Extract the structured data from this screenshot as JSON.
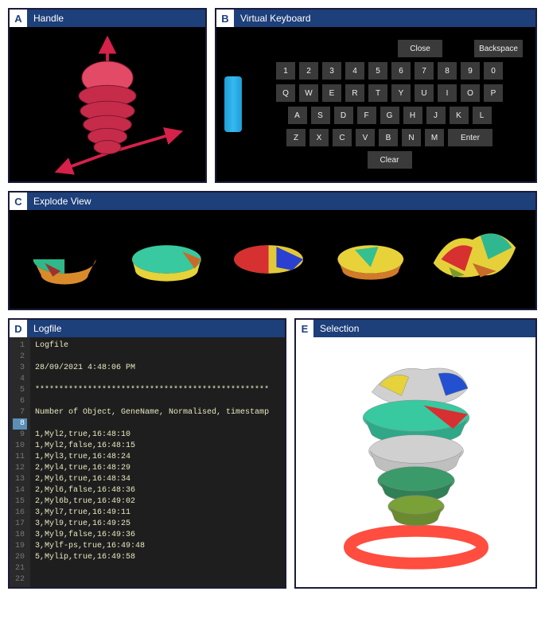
{
  "panels": {
    "a": {
      "tag": "A",
      "title": "Handle"
    },
    "b": {
      "tag": "B",
      "title": "Virtual Keyboard"
    },
    "c": {
      "tag": "C",
      "title": "Explode View"
    },
    "d": {
      "tag": "D",
      "title": "Logfile"
    },
    "e": {
      "tag": "E",
      "title": "Selection"
    }
  },
  "keyboard": {
    "close": "Close",
    "backspace": "Backspace",
    "enter": "Enter",
    "clear": "Clear",
    "rows": [
      [
        "1",
        "2",
        "3",
        "4",
        "5",
        "6",
        "7",
        "8",
        "9",
        "0"
      ],
      [
        "Q",
        "W",
        "E",
        "R",
        "T",
        "Y",
        "U",
        "I",
        "O",
        "P"
      ],
      [
        "A",
        "S",
        "D",
        "F",
        "G",
        "H",
        "J",
        "K",
        "L"
      ],
      [
        "Z",
        "X",
        "C",
        "V",
        "B",
        "N",
        "M"
      ]
    ],
    "key_bg": "#3a3a3a",
    "key_fg": "#eeeeee",
    "panel_bg": "#000000"
  },
  "handle_viz": {
    "bg": "#000000",
    "object_color": "#c72b4a",
    "object_highlight": "#ff4d6d",
    "arrow_color": "#d6214a"
  },
  "explode_view": {
    "bg": "#000000",
    "segments": [
      {
        "colors": [
          "#d98b2b",
          "#2fb88a",
          "#a03030"
        ]
      },
      {
        "colors": [
          "#38c9a0",
          "#e6d23a",
          "#c76a2a"
        ]
      },
      {
        "colors": [
          "#d63030",
          "#e0c83a",
          "#2b3fd0"
        ]
      },
      {
        "colors": [
          "#e8d23a",
          "#d07a2a",
          "#34c090"
        ]
      },
      {
        "colors": [
          "#d63030",
          "#e6d03a",
          "#2fb890",
          "#c76a2a",
          "#7a9a2a"
        ]
      }
    ]
  },
  "logfile": {
    "bg": "#1e1e1e",
    "gutter_bg": "#2a2a2a",
    "gutter_fg": "#777777",
    "text_fg": "#e8e8c0",
    "highlight_line": 8,
    "lines": [
      "Logfile",
      "",
      "28/09/2021 4:48:06 PM",
      "",
      "*************************************************",
      "",
      "Number of Object, GeneName, Normalised, timestamp",
      "",
      "1,Myl2,true,16:48:10",
      "1,Myl2,false,16:48:15",
      "1,Myl3,true,16:48:24",
      "2,Myl4,true,16:48:29",
      "2,Myl6,true,16:48:34",
      "2,Myl6,false,16:48:36",
      "2,Myl6b,true,16:49:02",
      "3,Myl7,true,16:49:11",
      "3,Myl9,true,16:49:25",
      "3,Myl9,false,16:49:36",
      "3,Mylf-ps,true,16:49:48",
      "5,Mylip,true,16:49:58",
      "",
      ""
    ]
  },
  "selection_viz": {
    "bg": "#ffffff",
    "colors": {
      "slice1": "#e6d23a",
      "slice2": "#d0d0d0",
      "slice3": "#2250d0",
      "slice4": "#38c9a0",
      "slice5": "#d63030",
      "slice6": "#3a9a6a",
      "slice7": "#7aa038",
      "ring": "#ff3a2a"
    }
  }
}
